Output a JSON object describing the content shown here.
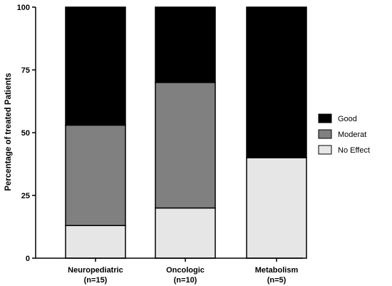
{
  "chart_data": {
    "type": "bar",
    "stacked": true,
    "categories": [
      "Neuropediatric",
      "Oncologic",
      "Metabolism"
    ],
    "category_subtitles": [
      "(n=15)",
      "(n=10)",
      "(n=5)"
    ],
    "series": [
      {
        "name": "No Effect",
        "values": [
          13,
          20,
          40
        ],
        "color": "#e6e6e6"
      },
      {
        "name": "Moderat",
        "values": [
          40,
          50,
          0
        ],
        "color": "#808080"
      },
      {
        "name": "Good",
        "values": [
          47,
          30,
          60
        ],
        "color": "#000000"
      }
    ],
    "legend_order": [
      "Good",
      "Moderat",
      "No Effect"
    ],
    "ylabel": "Percentage of treated Patients",
    "ylim": [
      0,
      100
    ],
    "yticks": [
      "0",
      "25",
      "50",
      "75",
      "100"
    ],
    "legend_position": "right",
    "grid": false
  }
}
